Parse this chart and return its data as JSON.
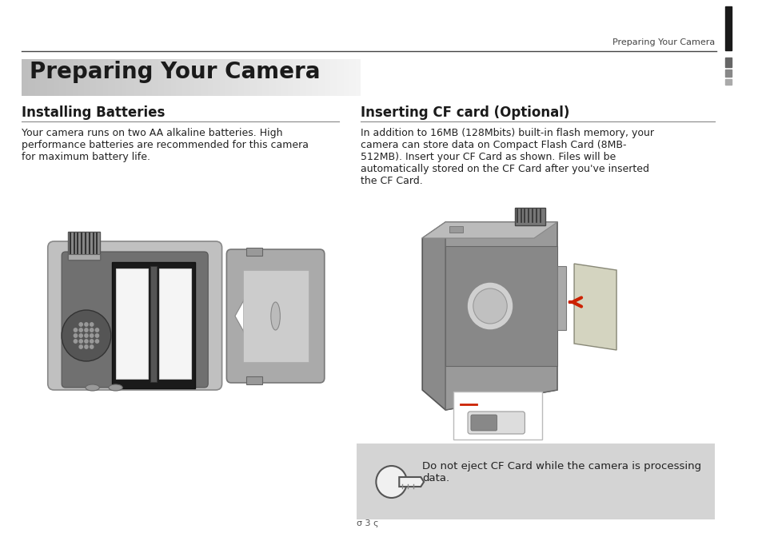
{
  "bg_color": "#ffffff",
  "header_text": "Preparing Your Camera",
  "title_text": "Preparing Your Camera",
  "left_heading": "Installing Batteries",
  "right_heading": "Inserting CF card (Optional)",
  "left_body": "Your camera runs on two AA alkaline batteries. High\nperformance batteries are recommended for this camera\nfor maximum battery life.",
  "right_body": "In addition to 16MB (128Mbits) built-in flash memory, your\ncamera can store data on Compact Flash Card (8MB-\n512MB). Insert your CF Card as shown. Files will be\nautomatically stored on the CF Card after you've inserted\nthe CF Card.",
  "note_text": "Do not eject CF Card while the camera is processing\ndata.",
  "page_num": "σ 3 ς",
  "title_bg_left": "#cccccc",
  "title_bg_right": "#e8e8e8",
  "note_bg": "#d4d4d4",
  "dark_bar_color": "#1a1a1a",
  "mid_bar1": "#666666",
  "mid_bar2": "#888888",
  "mid_bar3": "#aaaaaa"
}
